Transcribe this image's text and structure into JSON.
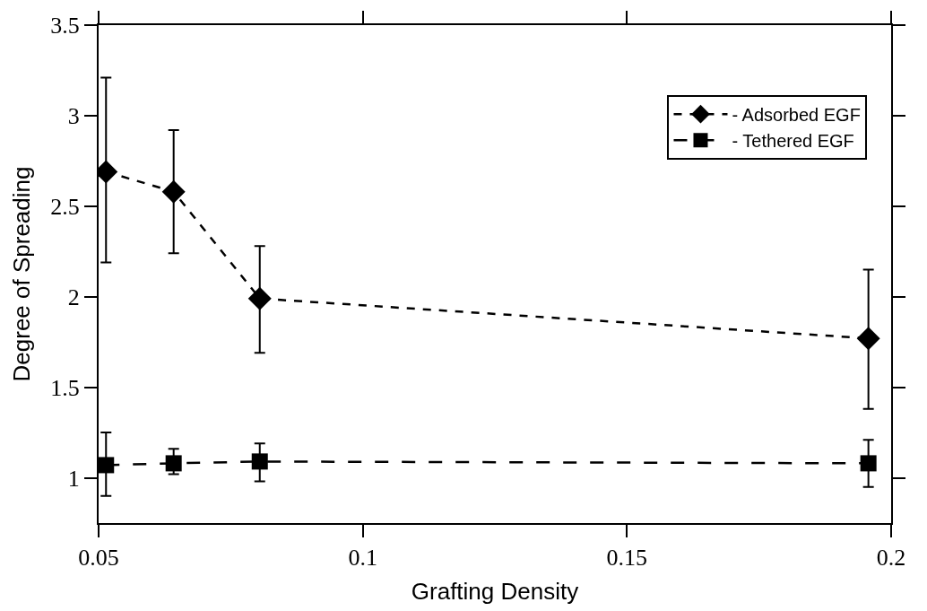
{
  "chart_data": {
    "type": "line",
    "xlabel": "Grafting Density",
    "ylabel": "Degree of Spreading",
    "xlim": [
      0.05,
      0.2
    ],
    "xticks": [
      0.05,
      0.1,
      0.15,
      0.2
    ],
    "ylim": [
      0.75,
      3.5
    ],
    "yticks": [
      1,
      1.5,
      2,
      2.5,
      3,
      3.5
    ],
    "legend": "top right",
    "series": [
      {
        "name": "- Adsorbed EGF",
        "color": "#000000",
        "marker": "diamond",
        "line_style": "dotted",
        "x": [
          0.0514,
          0.0642,
          0.0805,
          0.1957
        ],
        "values": [
          2.69,
          2.58,
          1.99,
          1.77
        ],
        "errors": [
          [
            2.19,
            3.21
          ],
          [
            2.24,
            2.92
          ],
          [
            1.69,
            2.28
          ],
          [
            1.38,
            2.15
          ]
        ]
      },
      {
        "name": "- Tethered EGF",
        "color": "#000000",
        "marker": "square",
        "line_style": "dashed",
        "x": [
          0.0514,
          0.0642,
          0.0805,
          0.1957
        ],
        "values": [
          1.07,
          1.08,
          1.09,
          1.08
        ],
        "errors": [
          [
            0.9,
            1.25
          ],
          [
            1.02,
            1.16
          ],
          [
            0.98,
            1.19
          ],
          [
            0.95,
            1.21
          ]
        ]
      }
    ]
  }
}
